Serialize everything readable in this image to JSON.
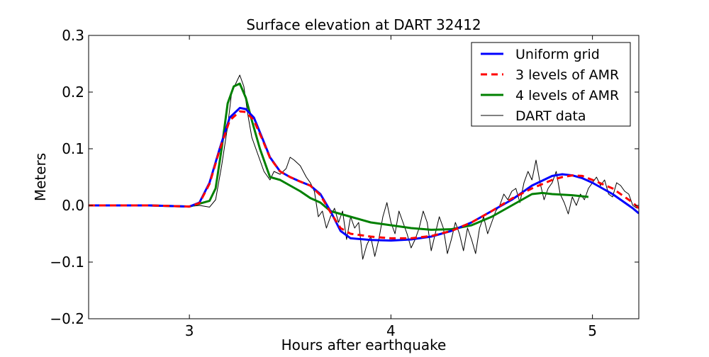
{
  "chart_data": {
    "type": "line",
    "title": "Surface elevation at DART 32412",
    "xlabel": "Hours after earthquake",
    "ylabel": "Meters",
    "xlim": [
      2.5,
      5.23
    ],
    "ylim": [
      -0.2,
      0.3
    ],
    "xticks": [
      3,
      4,
      5
    ],
    "yticks": [
      0.3,
      0.2,
      0.1,
      0.0,
      -0.1,
      -0.2
    ],
    "xtick_labels": [
      "3",
      "4",
      "5"
    ],
    "ytick_labels": [
      "0.3",
      "0.2",
      "0.1",
      "0.0",
      "−0.1",
      "−0.2"
    ],
    "grid": false,
    "legend_position": "top-right",
    "series": [
      {
        "name": "Uniform grid",
        "color": "#0000ff",
        "style": "solid",
        "x": [
          2.5,
          2.8,
          3.0,
          3.05,
          3.1,
          3.15,
          3.2,
          3.25,
          3.28,
          3.32,
          3.36,
          3.4,
          3.45,
          3.5,
          3.55,
          3.6,
          3.65,
          3.7,
          3.75,
          3.8,
          3.9,
          4.0,
          4.1,
          4.2,
          4.3,
          4.4,
          4.5,
          4.6,
          4.7,
          4.8,
          4.85,
          4.9,
          4.95,
          5.0,
          5.1,
          5.2,
          5.23
        ],
        "y": [
          0.0,
          0.0,
          -0.002,
          0.005,
          0.04,
          0.1,
          0.155,
          0.172,
          0.17,
          0.155,
          0.12,
          0.085,
          0.06,
          0.05,
          0.042,
          0.035,
          0.02,
          -0.01,
          -0.045,
          -0.058,
          -0.061,
          -0.062,
          -0.06,
          -0.055,
          -0.045,
          -0.03,
          -0.01,
          0.01,
          0.035,
          0.052,
          0.055,
          0.053,
          0.048,
          0.04,
          0.02,
          -0.005,
          -0.014
        ]
      },
      {
        "name": "3 levels of AMR",
        "color": "#ff0000",
        "style": "dashed",
        "x": [
          2.5,
          2.8,
          3.0,
          3.05,
          3.1,
          3.15,
          3.2,
          3.25,
          3.28,
          3.32,
          3.36,
          3.4,
          3.45,
          3.5,
          3.55,
          3.6,
          3.65,
          3.7,
          3.75,
          3.8,
          3.9,
          4.0,
          4.1,
          4.2,
          4.3,
          4.4,
          4.5,
          4.6,
          4.7,
          4.8,
          4.85,
          4.9,
          4.95,
          5.0,
          5.1,
          5.2,
          5.23
        ],
        "y": [
          0.0,
          0.0,
          -0.002,
          0.004,
          0.038,
          0.098,
          0.15,
          0.166,
          0.165,
          0.15,
          0.118,
          0.084,
          0.06,
          0.05,
          0.042,
          0.035,
          0.018,
          -0.012,
          -0.04,
          -0.05,
          -0.055,
          -0.058,
          -0.058,
          -0.054,
          -0.045,
          -0.03,
          -0.01,
          0.012,
          0.03,
          0.045,
          0.05,
          0.053,
          0.052,
          0.045,
          0.03,
          0.005,
          -0.005
        ]
      },
      {
        "name": "4 levels of AMR",
        "color": "#008000",
        "style": "solid",
        "x": [
          2.5,
          2.8,
          3.0,
          3.1,
          3.13,
          3.16,
          3.19,
          3.22,
          3.25,
          3.28,
          3.31,
          3.35,
          3.38,
          3.4,
          3.45,
          3.5,
          3.55,
          3.6,
          3.65,
          3.7,
          3.75,
          3.8,
          3.9,
          4.0,
          4.1,
          4.2,
          4.3,
          4.4,
          4.5,
          4.6,
          4.65,
          4.7,
          4.75,
          4.8,
          4.9,
          4.98
        ],
        "y": [
          0.0,
          0.0,
          -0.002,
          0.008,
          0.03,
          0.1,
          0.18,
          0.21,
          0.215,
          0.19,
          0.15,
          0.1,
          0.07,
          0.05,
          0.045,
          0.035,
          0.025,
          0.013,
          0.005,
          -0.01,
          -0.015,
          -0.02,
          -0.03,
          -0.035,
          -0.04,
          -0.043,
          -0.042,
          -0.035,
          -0.02,
          0.0,
          0.01,
          0.02,
          0.022,
          0.02,
          0.018,
          0.015
        ]
      },
      {
        "name": "DART data",
        "color": "#000000",
        "style": "solid",
        "x": [
          2.5,
          2.6,
          2.7,
          2.8,
          2.9,
          3.0,
          3.05,
          3.1,
          3.13,
          3.16,
          3.19,
          3.21,
          3.23,
          3.25,
          3.27,
          3.29,
          3.31,
          3.33,
          3.35,
          3.37,
          3.4,
          3.42,
          3.45,
          3.48,
          3.5,
          3.52,
          3.55,
          3.58,
          3.6,
          3.62,
          3.64,
          3.66,
          3.68,
          3.7,
          3.72,
          3.74,
          3.76,
          3.78,
          3.8,
          3.82,
          3.84,
          3.86,
          3.88,
          3.9,
          3.92,
          3.94,
          3.96,
          3.98,
          4.0,
          4.02,
          4.04,
          4.06,
          4.08,
          4.1,
          4.12,
          4.14,
          4.16,
          4.18,
          4.2,
          4.22,
          4.24,
          4.26,
          4.28,
          4.3,
          4.32,
          4.34,
          4.36,
          4.38,
          4.4,
          4.42,
          4.44,
          4.46,
          4.48,
          4.5,
          4.52,
          4.54,
          4.56,
          4.58,
          4.6,
          4.62,
          4.64,
          4.66,
          4.68,
          4.7,
          4.72,
          4.74,
          4.76,
          4.78,
          4.8,
          4.82,
          4.84,
          4.86,
          4.88,
          4.9,
          4.92,
          4.94,
          4.96,
          4.98,
          5.0,
          5.02,
          5.04,
          5.06,
          5.08,
          5.1,
          5.12,
          5.14,
          5.16,
          5.18,
          5.2,
          5.22
        ],
        "y": [
          0.0,
          0.001,
          0.0,
          0.0,
          0.0,
          -0.002,
          0.0,
          -0.003,
          0.01,
          0.07,
          0.14,
          0.2,
          0.215,
          0.23,
          0.21,
          0.16,
          0.12,
          0.1,
          0.08,
          0.06,
          0.045,
          0.06,
          0.055,
          0.065,
          0.085,
          0.08,
          0.07,
          0.05,
          0.04,
          0.025,
          -0.02,
          -0.01,
          -0.04,
          -0.02,
          -0.005,
          -0.03,
          -0.01,
          -0.06,
          -0.02,
          -0.04,
          -0.03,
          -0.095,
          -0.07,
          -0.055,
          -0.09,
          -0.06,
          -0.02,
          0.005,
          -0.03,
          -0.05,
          -0.01,
          -0.03,
          -0.05,
          -0.075,
          -0.06,
          -0.04,
          -0.01,
          -0.03,
          -0.08,
          -0.05,
          -0.02,
          -0.04,
          -0.085,
          -0.06,
          -0.03,
          -0.05,
          -0.08,
          -0.04,
          -0.06,
          -0.085,
          -0.04,
          -0.02,
          -0.05,
          -0.03,
          -0.01,
          0.0,
          0.02,
          0.01,
          0.025,
          0.03,
          0.005,
          0.04,
          0.06,
          0.045,
          0.08,
          0.04,
          0.01,
          0.03,
          0.04,
          0.06,
          0.02,
          0.005,
          -0.015,
          0.015,
          0.0,
          0.02,
          0.01,
          0.03,
          0.04,
          0.05,
          0.035,
          0.045,
          0.02,
          0.015,
          0.04,
          0.035,
          0.025,
          0.02,
          0.0,
          -0.005
        ]
      }
    ]
  }
}
